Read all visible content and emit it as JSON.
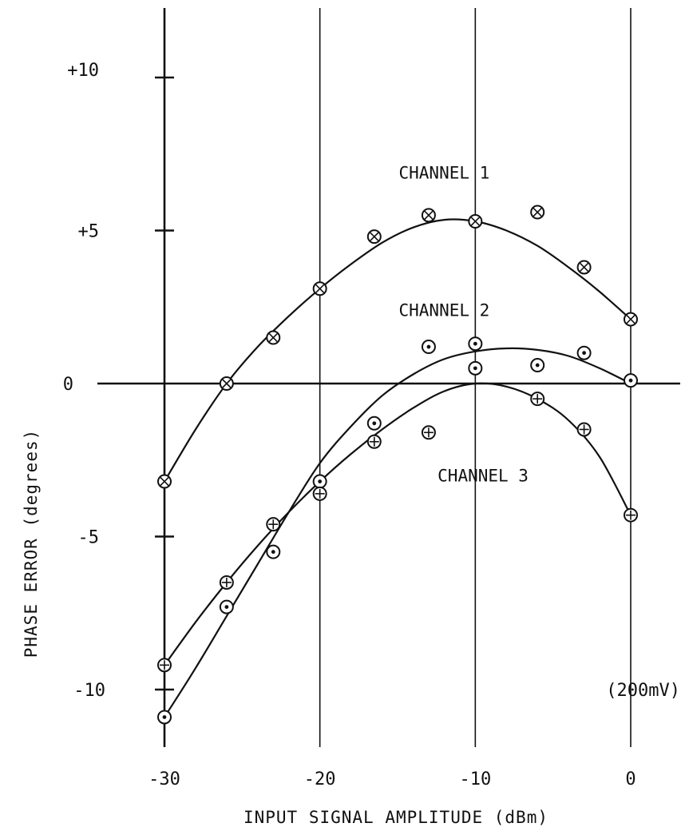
{
  "chart_data": {
    "type": "scatter",
    "title": "",
    "xlabel": "INPUT SIGNAL AMPLITUDE (dBm)",
    "ylabel": "PHASE ERROR (degrees)",
    "xlim": [
      -30,
      3
    ],
    "ylim": [
      -12,
      12
    ],
    "x_ticks": [
      -30,
      -20,
      -10,
      0
    ],
    "x_tick_labels": [
      "-30",
      "-20",
      "-10",
      "0"
    ],
    "y_ticks": [
      10,
      5,
      0,
      -5,
      -10
    ],
    "y_tick_labels": [
      "+10",
      "+5",
      "0",
      "-5",
      "-10"
    ],
    "grid": "vertical",
    "annotations": [
      {
        "text": "(200mV)",
        "x": 0,
        "y": -10
      }
    ],
    "series": [
      {
        "name": "CHANNEL 1",
        "marker": "circle-x",
        "label_at": {
          "x": -12,
          "y": 6.7
        },
        "x": [
          -30,
          -26,
          -23,
          -20,
          -16.5,
          -13,
          -10,
          -6,
          -3,
          0
        ],
        "y": [
          -3.2,
          0.0,
          1.5,
          3.1,
          4.8,
          5.5,
          5.3,
          5.6,
          3.8,
          2.1
        ],
        "fit_x": [
          -30,
          -28,
          -26,
          -24,
          -22,
          -20,
          -18,
          -16,
          -14,
          -12,
          -10,
          -8,
          -6,
          -4,
          -2,
          0
        ],
        "fit_y": [
          -3.2,
          -1.5,
          0.0,
          1.2,
          2.2,
          3.1,
          3.9,
          4.6,
          5.1,
          5.35,
          5.3,
          5.0,
          4.5,
          3.8,
          3.0,
          2.1
        ]
      },
      {
        "name": "CHANNEL 2",
        "marker": "circle-dot",
        "label_at": {
          "x": -12,
          "y": 2.2
        },
        "x": [
          -30,
          -26,
          -23,
          -20,
          -16.5,
          -13,
          -10,
          -10,
          -6,
          -3,
          0
        ],
        "y": [
          -10.9,
          -7.3,
          -5.5,
          -3.2,
          -1.3,
          1.2,
          1.3,
          0.5,
          0.6,
          1.0,
          0.1
        ],
        "fit_x": [
          -30,
          -28,
          -26,
          -24,
          -22,
          -20,
          -18,
          -16,
          -14,
          -12,
          -10,
          -8,
          -6,
          -4,
          -2,
          0
        ],
        "fit_y": [
          -10.9,
          -9.3,
          -7.6,
          -5.9,
          -4.2,
          -2.6,
          -1.4,
          -0.4,
          0.3,
          0.8,
          1.05,
          1.15,
          1.1,
          0.9,
          0.5,
          0.0
        ]
      },
      {
        "name": "CHANNEL 3",
        "marker": "circle-plus",
        "label_at": {
          "x": -9.5,
          "y": -3.2
        },
        "x": [
          -30,
          -26,
          -23,
          -20,
          -16.5,
          -13,
          -6,
          -3,
          0
        ],
        "y": [
          -9.2,
          -6.5,
          -4.6,
          -3.6,
          -1.9,
          -1.6,
          -0.5,
          -1.5,
          -4.3
        ],
        "fit_x": [
          -30,
          -28,
          -26,
          -24,
          -22,
          -20,
          -18,
          -16,
          -14,
          -12,
          -10,
          -8,
          -6,
          -4,
          -2,
          0
        ],
        "fit_y": [
          -9.2,
          -7.8,
          -6.5,
          -5.3,
          -4.2,
          -3.2,
          -2.3,
          -1.5,
          -0.8,
          -0.25,
          0.0,
          -0.1,
          -0.5,
          -1.2,
          -2.4,
          -4.3
        ]
      }
    ]
  }
}
